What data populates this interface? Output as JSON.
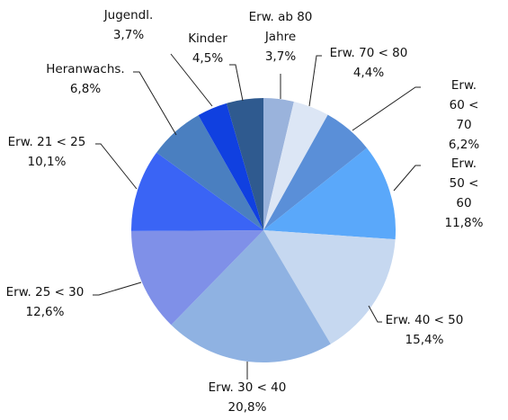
{
  "chart_data": {
    "type": "pie",
    "categories": [
      "Erw. ab 80 Jahre",
      "Erw. 70 < 80",
      "Erw. 60 < 70",
      "Erw. 50 < 60",
      "Erw. 40 < 50",
      "Erw. 30 < 40",
      "Erw. 25 < 30",
      "Erw. 21 < 25",
      "Heranwachs.",
      "Jugendl.",
      "Kinder"
    ],
    "values": [
      3.7,
      4.4,
      6.2,
      11.8,
      15.4,
      20.8,
      12.6,
      10.1,
      6.8,
      3.7,
      4.5
    ],
    "value_labels": [
      "3,7%",
      "4,4%",
      "6,2%",
      "11,8%",
      "15,4%",
      "20,8%",
      "12,6%",
      "10,1%",
      "6,8%",
      "3,7%",
      "4,5%"
    ],
    "colors": [
      "#9ab3dc",
      "#dce6f5",
      "#5a8fd8",
      "#5aa8fa",
      "#c6d8f0",
      "#8fb2e2",
      "#7f90e8",
      "#3a64f5",
      "#4a7fc0",
      "#1040e0",
      "#2f5a8f"
    ]
  }
}
